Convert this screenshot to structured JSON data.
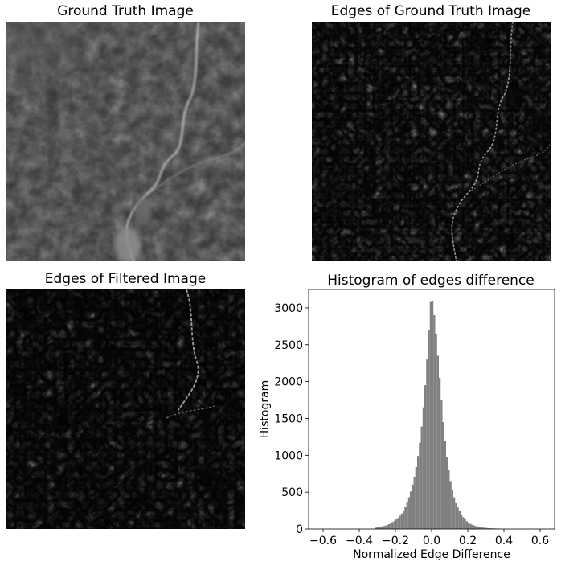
{
  "panels": {
    "ground_truth": {
      "title": "Ground Truth Image"
    },
    "edges_ground_truth": {
      "title": "Edges of Ground Truth Image"
    },
    "edges_filtered": {
      "title": "Edges of Filtered Image"
    }
  },
  "chart_data": {
    "type": "bar",
    "title": "Histogram of edges difference",
    "xlabel": "Normalized Edge Difference",
    "ylabel": "Histogram",
    "xlim": [
      -0.68,
      0.68
    ],
    "ylim": [
      0,
      3250
    ],
    "xticks": [
      -0.6,
      -0.4,
      -0.2,
      0.0,
      0.2,
      0.4,
      0.6
    ],
    "xtick_labels": [
      "−0.6",
      "−0.4",
      "−0.2",
      "0.0",
      "0.2",
      "0.4",
      "0.6"
    ],
    "yticks": [
      0,
      500,
      1000,
      1500,
      2000,
      2500,
      3000
    ],
    "ytick_labels": [
      "0",
      "500",
      "1000",
      "1500",
      "2000",
      "2500",
      "3000"
    ],
    "grid": false,
    "bar_color": "#808080",
    "bin_width": 0.01,
    "bin_centers": [
      -0.305,
      -0.295,
      -0.285,
      -0.275,
      -0.265,
      -0.255,
      -0.245,
      -0.235,
      -0.225,
      -0.215,
      -0.205,
      -0.195,
      -0.185,
      -0.175,
      -0.165,
      -0.155,
      -0.145,
      -0.135,
      -0.125,
      -0.115,
      -0.105,
      -0.095,
      -0.085,
      -0.075,
      -0.065,
      -0.055,
      -0.045,
      -0.035,
      -0.025,
      -0.015,
      -0.005,
      0.005,
      0.015,
      0.025,
      0.035,
      0.045,
      0.055,
      0.065,
      0.075,
      0.085,
      0.095,
      0.105,
      0.115,
      0.125,
      0.135,
      0.145,
      0.155,
      0.165,
      0.175,
      0.185,
      0.195,
      0.205,
      0.215,
      0.225,
      0.235,
      0.245,
      0.255,
      0.265,
      0.275,
      0.285,
      0.295,
      0.305,
      0.315,
      0.325,
      0.335,
      0.345,
      0.355,
      0.365,
      0.375
    ],
    "values": [
      20,
      25,
      30,
      35,
      40,
      45,
      55,
      65,
      80,
      95,
      110,
      130,
      150,
      180,
      210,
      250,
      300,
      360,
      430,
      510,
      600,
      710,
      840,
      990,
      1170,
      1390,
      1650,
      1950,
      2300,
      2700,
      3080,
      3090,
      2900,
      2650,
      2350,
      2050,
      1750,
      1450,
      1200,
      980,
      800,
      650,
      530,
      430,
      350,
      290,
      240,
      195,
      160,
      130,
      105,
      85,
      70,
      58,
      48,
      40,
      34,
      28,
      24,
      20,
      17,
      14,
      12,
      10,
      9,
      8,
      7,
      6,
      5
    ]
  }
}
